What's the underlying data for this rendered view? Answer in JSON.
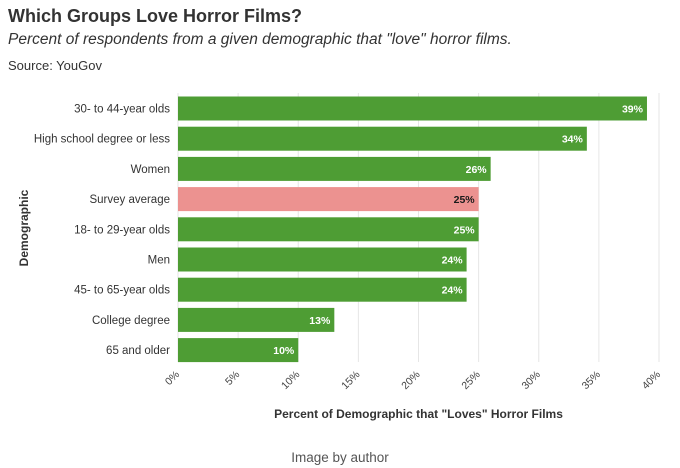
{
  "header": {
    "title": "Which Groups Love Horror Films?",
    "subtitle": "Percent of respondents from a given demographic that \"love\" horror films.",
    "source": "Source: YouGov"
  },
  "credit": "Image by author",
  "colors": {
    "bar": "#4e9d34",
    "highlight": "#ec9290",
    "grid": "#e6e6e6"
  },
  "chart_data": {
    "type": "bar",
    "orientation": "horizontal",
    "xlabel": "Percent of Demographic that \"Loves\" Horror Films",
    "ylabel": "Demographic",
    "xlim": [
      0,
      40
    ],
    "xticks": [
      "0%",
      "5%",
      "10%",
      "15%",
      "20%",
      "25%",
      "30%",
      "35%",
      "40%"
    ],
    "categories": [
      "30- to 44-year olds",
      "High school degree or less",
      "Women",
      "Survey average",
      "18- to 29-year olds",
      "Men",
      "45- to 65-year olds",
      "College degree",
      "65 and older"
    ],
    "values": [
      39,
      34,
      26,
      25,
      25,
      24,
      24,
      13,
      10
    ],
    "labels": [
      "39%",
      "34%",
      "26%",
      "25%",
      "25%",
      "24%",
      "24%",
      "13%",
      "10%"
    ],
    "highlight": "Survey average",
    "grid": true
  }
}
